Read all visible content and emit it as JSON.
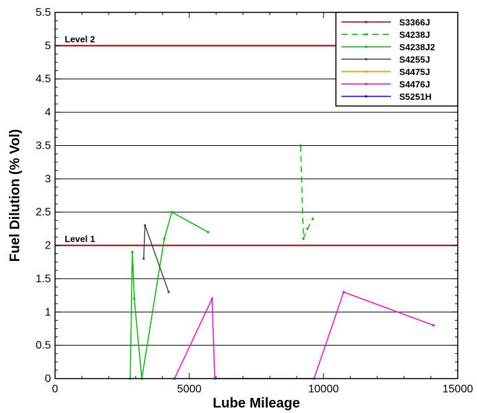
{
  "chart_data": {
    "type": "line",
    "xlabel": "Lube Mileage",
    "ylabel": "Fuel Dilution (% Vol)",
    "xlim": [
      0,
      15000
    ],
    "ylim": [
      0,
      5.5
    ],
    "x_ticks": [
      "0",
      "5000",
      "10000",
      "15000"
    ],
    "y_ticks": [
      "0",
      "0.5",
      "1",
      "1.5",
      "2",
      "2.5",
      "3",
      "3.5",
      "4",
      "4.5",
      "5",
      "5.5"
    ],
    "grid": "horizontal",
    "legend_position": "top-right",
    "reference_lines": [
      {
        "label": "Level 2",
        "y": 5,
        "color": "#a00000"
      },
      {
        "label": "Level 1",
        "y": 2,
        "color": "#a00000"
      }
    ],
    "series": [
      {
        "name": "S3366J",
        "color": "#a00000",
        "dash": "solid",
        "points": []
      },
      {
        "name": "S4238J",
        "color": "#00bb00",
        "dash": "dashed",
        "points": [
          [
            9150,
            3.5
          ],
          [
            9250,
            2.1
          ],
          [
            9400,
            2.25
          ],
          [
            9600,
            2.4
          ]
        ]
      },
      {
        "name": "S4238J2",
        "color": "#00bb00",
        "dash": "solid",
        "points": [
          [
            2800,
            0
          ],
          [
            2880,
            1.9
          ],
          [
            2950,
            1.2
          ],
          [
            3230,
            0
          ],
          [
            4070,
            2.1
          ],
          [
            4350,
            2.5
          ],
          [
            5700,
            2.2
          ]
        ]
      },
      {
        "name": "S4255J",
        "color": "#444444",
        "dash": "solid",
        "points": [
          [
            3300,
            1.8
          ],
          [
            3350,
            2.3
          ],
          [
            4230,
            1.3
          ]
        ]
      },
      {
        "name": "S4475J",
        "color": "#ff8800",
        "dash": "solid",
        "points": []
      },
      {
        "name": "S4476J",
        "color": "#ff00dd",
        "dash": "solid",
        "points": [
          [
            4450,
            0
          ],
          [
            5850,
            1.2
          ],
          [
            5950,
            0
          ],
          [
            9650,
            0
          ],
          [
            10750,
            1.3
          ],
          [
            14100,
            0.8
          ]
        ]
      },
      {
        "name": "S5251H",
        "color": "#0000ff",
        "dash": "solid",
        "points": []
      }
    ]
  }
}
